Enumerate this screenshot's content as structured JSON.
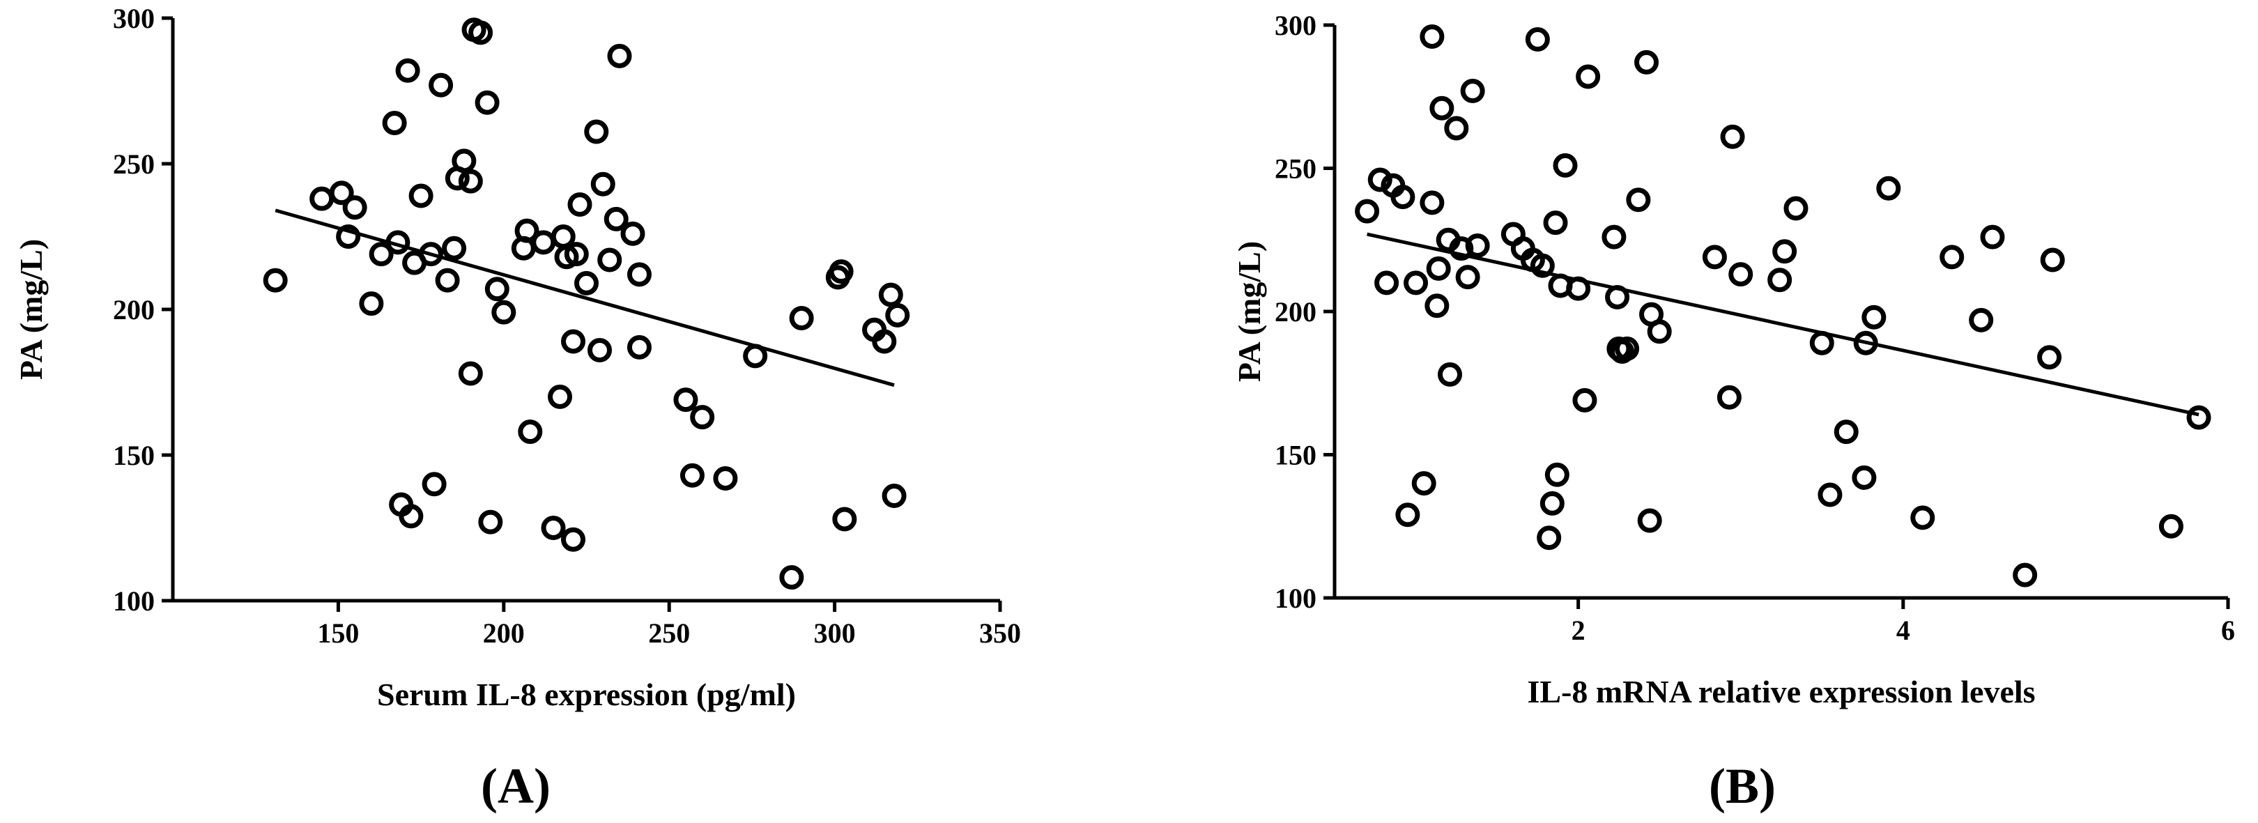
{
  "chart_data": [
    {
      "type": "scatter",
      "panel_label": "(A)",
      "xlabel": "Serum IL-8 expression (pg/ml)",
      "ylabel": "PA (mg/L)",
      "xlim": [
        100,
        350
      ],
      "ylim": [
        100,
        300
      ],
      "xticks": [
        150,
        200,
        250,
        300,
        350
      ],
      "yticks": [
        100,
        150,
        200,
        250,
        300
      ],
      "xtick_labels": [
        "150",
        "200",
        "250",
        "300",
        "350"
      ],
      "ytick_labels": [
        "100",
        "150",
        "200",
        "250",
        "300"
      ],
      "grid": false,
      "marker": "open-circle",
      "trendline": {
        "x": [
          131,
          318
        ],
        "y": [
          234,
          174
        ]
      },
      "points": [
        [
          131,
          210
        ],
        [
          145,
          238
        ],
        [
          151,
          240
        ],
        [
          153,
          225
        ],
        [
          155,
          235
        ],
        [
          160,
          202
        ],
        [
          163,
          219
        ],
        [
          167,
          264
        ],
        [
          168,
          223
        ],
        [
          169,
          133
        ],
        [
          171,
          282
        ],
        [
          172,
          129
        ],
        [
          173,
          216
        ],
        [
          175,
          239
        ],
        [
          178,
          219
        ],
        [
          179,
          140
        ],
        [
          181,
          277
        ],
        [
          183,
          210
        ],
        [
          185,
          221
        ],
        [
          186,
          245
        ],
        [
          188,
          251
        ],
        [
          190,
          244
        ],
        [
          190,
          178
        ],
        [
          191,
          296
        ],
        [
          193,
          295
        ],
        [
          195,
          271
        ],
        [
          196,
          127
        ],
        [
          198,
          207
        ],
        [
          200,
          199
        ],
        [
          206,
          221
        ],
        [
          207,
          227
        ],
        [
          208,
          158
        ],
        [
          212,
          223
        ],
        [
          215,
          125
        ],
        [
          217,
          170
        ],
        [
          218,
          225
        ],
        [
          219,
          218
        ],
        [
          221,
          121
        ],
        [
          221,
          189
        ],
        [
          222,
          219
        ],
        [
          223,
          236
        ],
        [
          225,
          209
        ],
        [
          228,
          261
        ],
        [
          229,
          186
        ],
        [
          230,
          243
        ],
        [
          232,
          217
        ],
        [
          234,
          231
        ],
        [
          235,
          287
        ],
        [
          239,
          226
        ],
        [
          241,
          212
        ],
        [
          241,
          187
        ],
        [
          255,
          169
        ],
        [
          257,
          143
        ],
        [
          260,
          163
        ],
        [
          267,
          142
        ],
        [
          276,
          184
        ],
        [
          287,
          108
        ],
        [
          290,
          197
        ],
        [
          301,
          211
        ],
        [
          302,
          213
        ],
        [
          303,
          128
        ],
        [
          312,
          193
        ],
        [
          315,
          189
        ],
        [
          317,
          205
        ],
        [
          318,
          136
        ],
        [
          319,
          198
        ]
      ]
    },
    {
      "type": "scatter",
      "panel_label": "(B)",
      "xlabel": "IL-8 mRNA relative expression levels",
      "ylabel": "PA (mg/L)",
      "xlim": [
        0.5,
        6
      ],
      "ylim": [
        100,
        300
      ],
      "xticks": [
        2,
        4,
        6
      ],
      "yticks": [
        100,
        150,
        200,
        250,
        300
      ],
      "xtick_labels": [
        "2",
        "4",
        "6"
      ],
      "ytick_labels": [
        "100",
        "150",
        "200",
        "250",
        "300"
      ],
      "grid": false,
      "marker": "open-circle",
      "trendline": {
        "x": [
          0.7,
          5.82
        ],
        "y": [
          227,
          164
        ]
      },
      "points": [
        [
          0.7,
          235
        ],
        [
          0.78,
          246
        ],
        [
          0.82,
          210
        ],
        [
          0.86,
          244
        ],
        [
          0.92,
          240
        ],
        [
          0.95,
          129
        ],
        [
          1.0,
          210
        ],
        [
          1.05,
          140
        ],
        [
          1.1,
          238
        ],
        [
          1.1,
          296
        ],
        [
          1.13,
          202
        ],
        [
          1.14,
          215
        ],
        [
          1.16,
          271
        ],
        [
          1.2,
          225
        ],
        [
          1.21,
          178
        ],
        [
          1.25,
          264
        ],
        [
          1.28,
          222
        ],
        [
          1.32,
          212
        ],
        [
          1.35,
          277
        ],
        [
          1.38,
          223
        ],
        [
          1.6,
          227
        ],
        [
          1.66,
          222
        ],
        [
          1.72,
          218
        ],
        [
          1.75,
          295
        ],
        [
          1.78,
          216
        ],
        [
          1.82,
          121
        ],
        [
          1.84,
          133
        ],
        [
          1.86,
          231
        ],
        [
          1.87,
          143
        ],
        [
          1.89,
          209
        ],
        [
          1.92,
          251
        ],
        [
          2.0,
          208
        ],
        [
          2.04,
          169
        ],
        [
          2.06,
          282
        ],
        [
          2.22,
          226
        ],
        [
          2.24,
          205
        ],
        [
          2.25,
          187
        ],
        [
          2.27,
          186
        ],
        [
          2.3,
          187
        ],
        [
          2.37,
          239
        ],
        [
          2.42,
          287
        ],
        [
          2.44,
          127
        ],
        [
          2.45,
          199
        ],
        [
          2.5,
          193
        ],
        [
          2.84,
          219
        ],
        [
          2.93,
          170
        ],
        [
          2.95,
          261
        ],
        [
          3.0,
          213
        ],
        [
          3.24,
          211
        ],
        [
          3.27,
          221
        ],
        [
          3.34,
          236
        ],
        [
          3.5,
          189
        ],
        [
          3.55,
          136
        ],
        [
          3.65,
          158
        ],
        [
          3.76,
          142
        ],
        [
          3.77,
          189
        ],
        [
          3.82,
          198
        ],
        [
          3.91,
          243
        ],
        [
          4.12,
          128
        ],
        [
          4.3,
          219
        ],
        [
          4.48,
          197
        ],
        [
          4.55,
          226
        ],
        [
          4.75,
          108
        ],
        [
          4.9,
          184
        ],
        [
          4.92,
          218
        ],
        [
          5.65,
          125
        ],
        [
          5.82,
          163
        ]
      ]
    }
  ]
}
